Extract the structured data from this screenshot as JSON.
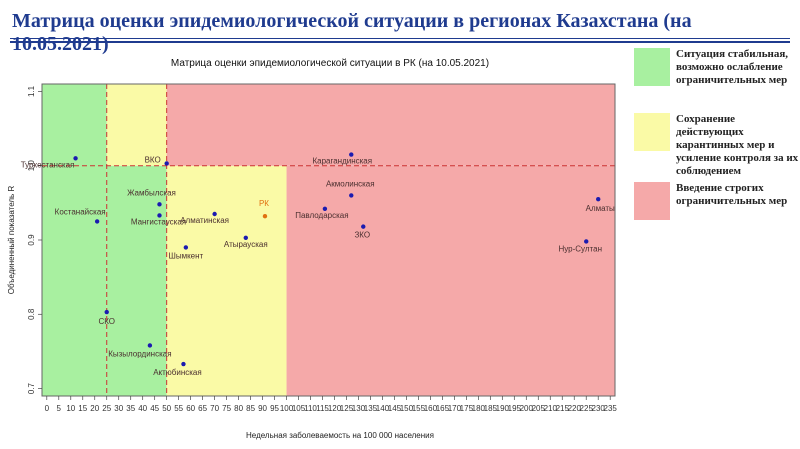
{
  "page_title": "Матрица оценки эпидемиологической ситуации в регионах Казахстана (на 10.05.2021)",
  "legend": [
    {
      "text": "Ситуация стабильная,\nвозможно ослабление\nограничительных мер",
      "color": "#a8f0a0"
    },
    {
      "text": "Сохранение\nдействующих\nкарантинных мер и\nусиление контроля за их\nсоблюдением",
      "color": "#fafaa6"
    },
    {
      "text": "Введение строгих\nограничительных мер",
      "color": "#f5a9a9"
    }
  ],
  "chart_data": {
    "type": "scatter",
    "title": "Матрица оценки эпидемиологической ситуации в РК (на 10.05.2021)",
    "xlabel": "Недельная заболеваемость на 100 000 населения",
    "ylabel": "Объединенный показатель R",
    "xlim": [
      -2,
      237
    ],
    "ylim": [
      0.69,
      1.11
    ],
    "x_ticks": [
      0,
      5,
      10,
      15,
      20,
      25,
      30,
      35,
      40,
      45,
      50,
      55,
      60,
      65,
      70,
      75,
      80,
      85,
      90,
      95,
      100,
      105,
      110,
      115,
      120,
      125,
      130,
      135,
      140,
      145,
      150,
      155,
      160,
      165,
      170,
      175,
      180,
      185,
      190,
      195,
      200,
      205,
      210,
      215,
      220,
      225,
      230,
      235
    ],
    "y_ticks": [
      0.7,
      0.8,
      0.9,
      1.0,
      1.1
    ],
    "zones": [
      {
        "x": [
          -2,
          25
        ],
        "y": [
          0.69,
          1.11
        ],
        "color": "#a8f0a0"
      },
      {
        "x": [
          25,
          50
        ],
        "y": [
          0.69,
          1.0
        ],
        "color": "#a8f0a0"
      },
      {
        "x": [
          25,
          50
        ],
        "y": [
          1.0,
          1.11
        ],
        "color": "#fafaa6"
      },
      {
        "x": [
          50,
          100
        ],
        "y": [
          0.69,
          1.0
        ],
        "color": "#fafaa6"
      },
      {
        "x": [
          50,
          237
        ],
        "y": [
          1.0,
          1.11
        ],
        "color": "#f5a9a9"
      },
      {
        "x": [
          100,
          237
        ],
        "y": [
          0.69,
          1.0
        ],
        "color": "#f5a9a9"
      }
    ],
    "reference_lines": {
      "vertical": [
        25,
        50
      ],
      "horizontal": [
        1.0
      ]
    },
    "points": [
      {
        "label": "Туркестанская",
        "x": 12,
        "y": 1.01
      },
      {
        "label": "ВКО",
        "x": 50,
        "y": 1.003
      },
      {
        "label": "Карагандинская",
        "x": 127,
        "y": 1.015
      },
      {
        "label": "Акмолинская",
        "x": 127,
        "y": 0.96
      },
      {
        "label": "Жамбылская",
        "x": 47,
        "y": 0.948
      },
      {
        "label": "Мангистауская",
        "x": 47,
        "y": 0.933
      },
      {
        "label": "Костанайская",
        "x": 21,
        "y": 0.925
      },
      {
        "label": "Алматинская",
        "x": 70,
        "y": 0.935
      },
      {
        "label": "РК",
        "x": 91,
        "y": 0.932,
        "color": "#e07010"
      },
      {
        "label": "Павлодарская",
        "x": 116,
        "y": 0.942
      },
      {
        "label": "Алматы",
        "x": 230,
        "y": 0.955
      },
      {
        "label": "ЗКО",
        "x": 132,
        "y": 0.918
      },
      {
        "label": "Атырауская",
        "x": 83,
        "y": 0.903
      },
      {
        "label": "Шымкент",
        "x": 58,
        "y": 0.89
      },
      {
        "label": "Нур-Султан",
        "x": 225,
        "y": 0.898
      },
      {
        "label": "СКО",
        "x": 25,
        "y": 0.803
      },
      {
        "label": "Кызылординская",
        "x": 43,
        "y": 0.758
      },
      {
        "label": "Актюбинская",
        "x": 57,
        "y": 0.733
      }
    ]
  }
}
